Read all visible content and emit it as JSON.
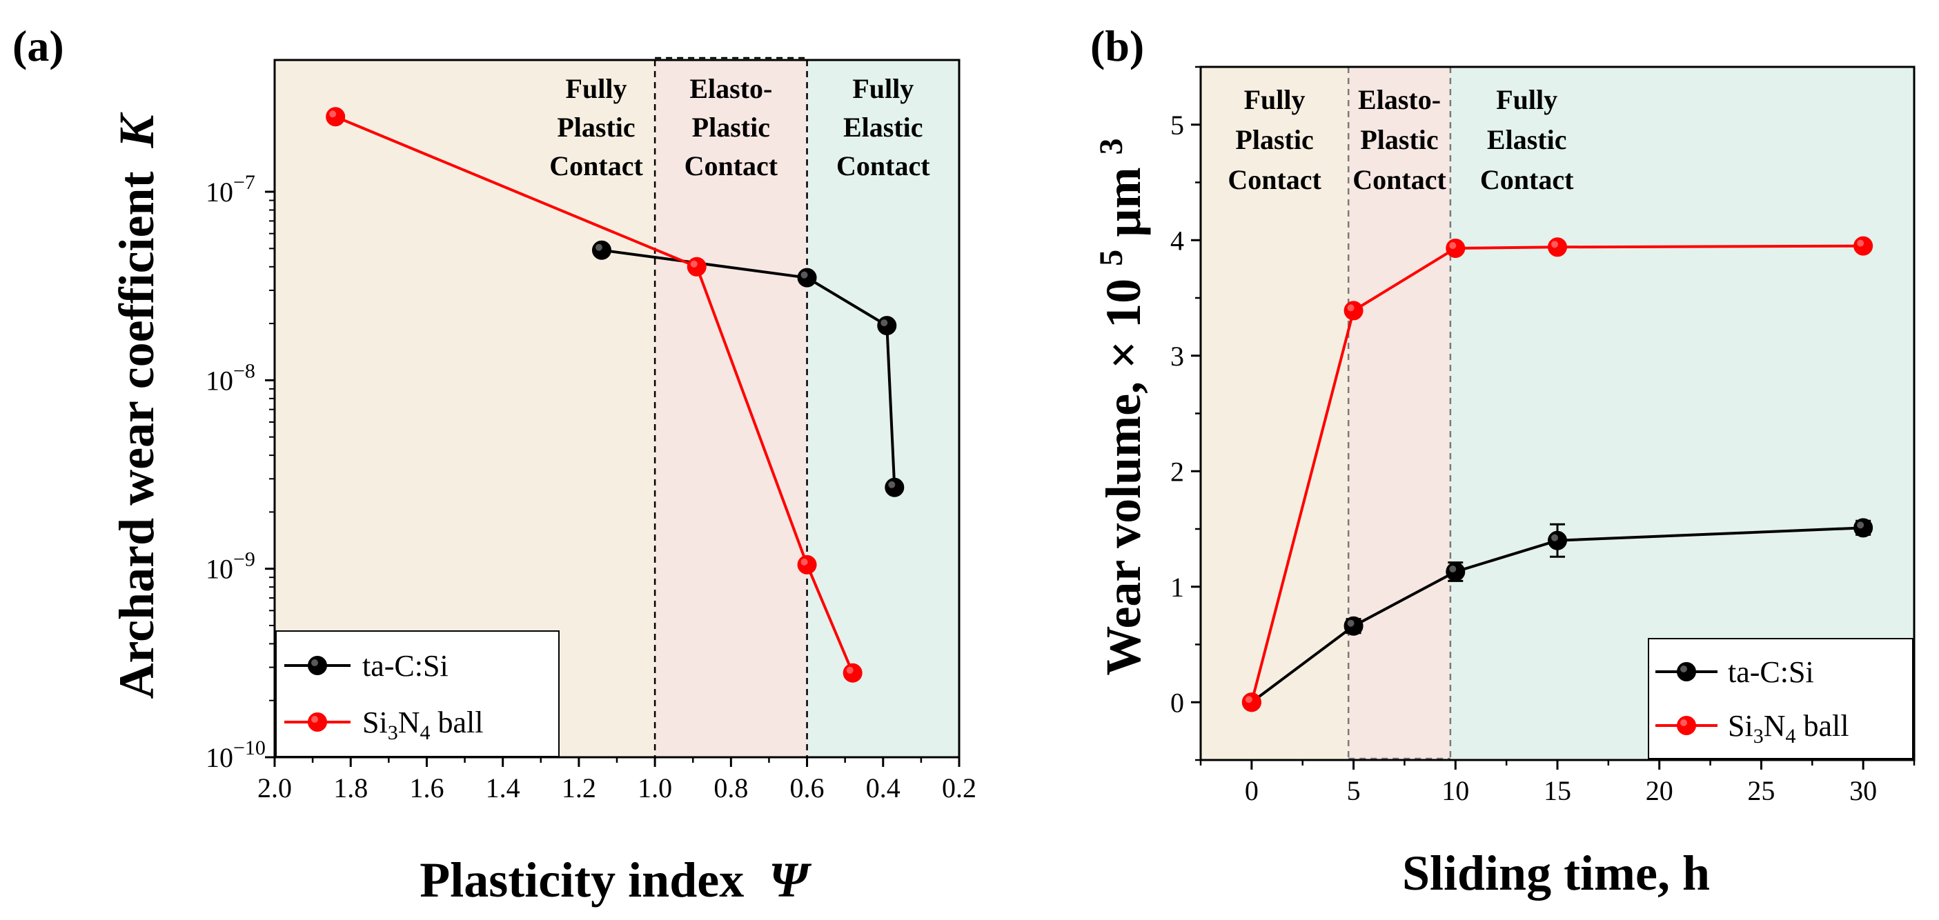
{
  "chart_data": [
    {
      "type": "line",
      "panel_label": "(a)",
      "xlabel": "Plasticity index",
      "xlabel_symbol": "Ψ",
      "ylabel": "Archard wear coefficient",
      "ylabel_symbol": "K",
      "yscale": "log",
      "xlim": [
        2.0,
        0.2
      ],
      "ylim": [
        1e-10,
        5e-07
      ],
      "x_ticks": [
        "2.0",
        "1.8",
        "1.6",
        "1.4",
        "1.2",
        "1.0",
        "0.8",
        "0.6",
        "0.4",
        "0.2"
      ],
      "x_tick_values": [
        2.0,
        1.8,
        1.6,
        1.4,
        1.2,
        1.0,
        0.8,
        0.6,
        0.4,
        0.2
      ],
      "y_ticks": [
        {
          "base": "10",
          "exp": "−7",
          "value": 1e-07
        },
        {
          "base": "10",
          "exp": "−8",
          "value": 1e-08
        },
        {
          "base": "10",
          "exp": "−9",
          "value": 1e-09
        },
        {
          "base": "10",
          "exp": "−10",
          "value": 1e-10
        }
      ],
      "regions": [
        {
          "lines": [
            "Fully",
            "Plastic",
            "Contact"
          ],
          "from": 2.0,
          "to": 1.0,
          "color": "#f6efe1"
        },
        {
          "lines": [
            "Elasto-",
            "Plastic",
            "Contact"
          ],
          "from": 1.0,
          "to": 0.6,
          "color": "#f6e7e2"
        },
        {
          "lines": [
            "Fully",
            "Elastic",
            "Contact"
          ],
          "from": 0.6,
          "to": 0.2,
          "color": "#e3f2ec"
        }
      ],
      "series": [
        {
          "name": "ta-C:Si",
          "color": "#000000",
          "x": [
            1.14,
            0.6,
            0.39,
            0.37
          ],
          "y": [
            4.9e-08,
            3.5e-08,
            1.95e-08,
            2.7e-09
          ]
        },
        {
          "name": "Si3N4 ball",
          "name_parts": [
            "Si",
            "3",
            "N",
            "4",
            " ball"
          ],
          "color": "#ff0000",
          "x": [
            1.84,
            0.89,
            0.6,
            0.48
          ],
          "y": [
            2.5e-07,
            4e-08,
            1.05e-09,
            2.8e-10
          ]
        }
      ],
      "legend_position": "bottom-left"
    },
    {
      "type": "line",
      "panel_label": "(b)",
      "xlabel": "Sliding time, h",
      "ylabel_parts": [
        "Wear volume, × 10",
        "5",
        " µm",
        "3"
      ],
      "xlim": [
        -2.5,
        32.5
      ],
      "ylim": [
        -0.5,
        5.5
      ],
      "x_ticks": [
        "0",
        "5",
        "10",
        "15",
        "20",
        "25",
        "30"
      ],
      "x_tick_values": [
        0,
        5,
        10,
        15,
        20,
        25,
        30
      ],
      "y_ticks": [
        "0",
        "1",
        "2",
        "3",
        "4",
        "5"
      ],
      "y_tick_values": [
        0,
        1,
        2,
        3,
        4,
        5
      ],
      "regions": [
        {
          "lines": [
            "Fully",
            "Plastic",
            "Contact"
          ],
          "from": -2.5,
          "to": 4.75,
          "color": "#f6efe1"
        },
        {
          "lines": [
            "Elasto-",
            "Plastic",
            "Contact"
          ],
          "from": 4.75,
          "to": 9.75,
          "color": "#f6e7e2"
        },
        {
          "lines": [
            "Fully",
            "Elastic",
            "Contact"
          ],
          "from": 9.75,
          "to": 32.5,
          "color": "#e3f2ec"
        }
      ],
      "series": [
        {
          "name": "ta-C:Si",
          "color": "#000000",
          "x": [
            0,
            5,
            10,
            15,
            30
          ],
          "y": [
            0,
            0.66,
            1.13,
            1.4,
            1.51
          ],
          "yerr": [
            0,
            0.06,
            0.08,
            0.14,
            0.06
          ]
        },
        {
          "name": "Si3N4 ball",
          "name_parts": [
            "Si",
            "3",
            "N",
            "4",
            " ball"
          ],
          "color": "#ff0000",
          "x": [
            0,
            5,
            10,
            15,
            30
          ],
          "y": [
            0,
            3.39,
            3.93,
            3.94,
            3.95
          ],
          "yerr": [
            0,
            0,
            0,
            0,
            0
          ]
        }
      ],
      "legend_position": "bottom-right"
    }
  ]
}
